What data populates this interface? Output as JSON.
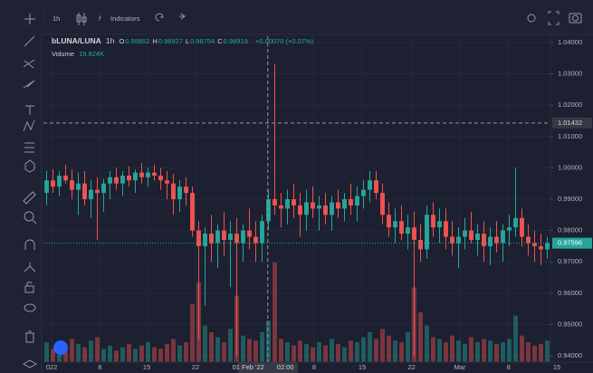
{
  "toolbar": {
    "interval": "1h",
    "indicators": "Indicators"
  },
  "chart_data": {
    "type": "candlestick",
    "symbol": "bLUNA/LUNA",
    "interval": "1h",
    "ohlc_legend": [
      {
        "key": "O",
        "value": "0.98852"
      },
      {
        "key": "H",
        "value": "0.98927"
      },
      {
        "key": "L",
        "value": "0.98754"
      },
      {
        "key": "C",
        "value": "0.98919"
      }
    ],
    "change": "+0.00070 (+0.07%)",
    "volume_legend": {
      "name": "Volume",
      "value": "19.824K"
    },
    "up_color": "#26a69a",
    "down_color": "#ef5350",
    "open": [
      0.992,
      0.996,
      0.994,
      0.9975,
      0.996,
      0.993,
      0.995,
      0.99,
      0.993,
      0.992,
      0.995,
      0.997,
      0.995,
      0.9975,
      0.996,
      0.9985,
      0.997,
      0.9985,
      0.9975,
      0.996,
      0.995,
      0.99,
      0.994,
      0.992,
      0.98,
      0.975,
      0.979,
      0.976,
      0.98,
      0.977,
      0.979,
      0.976,
      0.98,
      0.978,
      0.976,
      0.983,
      0.99,
      0.988,
      0.987,
      0.99,
      0.988,
      0.985,
      0.989,
      0.987,
      0.988,
      0.985,
      0.989,
      0.987,
      0.99,
      0.988,
      0.991,
      0.993,
      0.996,
      0.992,
      0.985,
      0.981,
      0.983,
      0.979,
      0.981,
      0.977,
      0.974,
      0.985,
      0.981,
      0.983,
      0.978,
      0.976,
      0.978,
      0.98,
      0.977,
      0.979,
      0.975,
      0.978,
      0.976,
      0.98,
      0.981,
      0.984,
      0.978,
      0.976,
      0.975,
      0.974
    ],
    "high": [
      0.999,
      0.9995,
      0.999,
      1.001,
      0.9995,
      0.9985,
      0.999,
      0.996,
      0.997,
      0.9965,
      0.999,
      1.0,
      0.999,
      1.0005,
      0.9995,
      1.0015,
      1.0,
      1.001,
      1.0,
      0.999,
      0.998,
      0.996,
      0.997,
      0.994,
      0.983,
      0.981,
      0.985,
      0.982,
      0.986,
      0.983,
      0.984,
      0.982,
      0.987,
      0.983,
      0.985,
      0.993,
      1.033,
      0.992,
      0.993,
      0.995,
      0.992,
      0.993,
      0.994,
      0.991,
      0.992,
      0.991,
      0.993,
      0.992,
      0.995,
      0.994,
      0.996,
      0.999,
      0.999,
      0.995,
      0.989,
      0.987,
      0.988,
      0.985,
      0.986,
      0.982,
      0.988,
      0.989,
      0.987,
      0.987,
      0.983,
      0.981,
      0.984,
      0.986,
      0.982,
      0.983,
      0.981,
      0.983,
      0.982,
      0.985,
      1.0,
      0.987,
      0.982,
      0.98,
      0.979,
      0.978
    ],
    "low": [
      0.988,
      0.992,
      0.991,
      0.995,
      0.99,
      0.985,
      0.988,
      0.984,
      0.977,
      0.986,
      0.99,
      0.993,
      0.991,
      0.994,
      0.992,
      0.995,
      0.994,
      0.996,
      0.993,
      0.99,
      0.985,
      0.986,
      0.988,
      0.978,
      0.945,
      0.956,
      0.97,
      0.968,
      0.972,
      0.962,
      0.94,
      0.97,
      0.974,
      0.97,
      0.97,
      0.98,
      0.985,
      0.981,
      0.982,
      0.984,
      0.978,
      0.98,
      0.984,
      0.98,
      0.982,
      0.98,
      0.984,
      0.983,
      0.985,
      0.983,
      0.987,
      0.989,
      0.99,
      0.982,
      0.978,
      0.976,
      0.977,
      0.974,
      0.94,
      0.97,
      0.971,
      0.978,
      0.976,
      0.974,
      0.972,
      0.968,
      0.974,
      0.976,
      0.972,
      0.97,
      0.969,
      0.973,
      0.97,
      0.975,
      0.978,
      0.975,
      0.972,
      0.97,
      0.969,
      0.971
    ],
    "close": [
      0.996,
      0.994,
      0.9975,
      0.996,
      0.993,
      0.995,
      0.99,
      0.993,
      0.992,
      0.995,
      0.997,
      0.995,
      0.9975,
      0.996,
      0.9985,
      0.997,
      0.9985,
      0.9975,
      0.996,
      0.995,
      0.99,
      0.994,
      0.992,
      0.98,
      0.975,
      0.979,
      0.976,
      0.98,
      0.977,
      0.979,
      0.976,
      0.98,
      0.978,
      0.976,
      0.983,
      0.99,
      0.988,
      0.987,
      0.99,
      0.988,
      0.985,
      0.989,
      0.987,
      0.988,
      0.985,
      0.989,
      0.987,
      0.99,
      0.988,
      0.991,
      0.993,
      0.996,
      0.992,
      0.985,
      0.981,
      0.983,
      0.979,
      0.981,
      0.977,
      0.974,
      0.985,
      0.981,
      0.983,
      0.978,
      0.976,
      0.978,
      0.98,
      0.977,
      0.979,
      0.975,
      0.978,
      0.976,
      0.98,
      0.981,
      0.984,
      0.978,
      0.976,
      0.975,
      0.974,
      0.976
    ],
    "volume": [
      12,
      8,
      10,
      9,
      14,
      11,
      9,
      13,
      15,
      8,
      10,
      7,
      9,
      11,
      8,
      10,
      12,
      9,
      8,
      11,
      14,
      10,
      12,
      35,
      48,
      22,
      18,
      15,
      12,
      20,
      40,
      16,
      14,
      13,
      18,
      25,
      60,
      14,
      12,
      10,
      13,
      11,
      9,
      12,
      10,
      14,
      11,
      9,
      13,
      12,
      15,
      18,
      14,
      20,
      16,
      13,
      12,
      18,
      45,
      30,
      22,
      15,
      14,
      12,
      16,
      13,
      11,
      15,
      12,
      14,
      13,
      11,
      12,
      14,
      28,
      16,
      12,
      10,
      11,
      13
    ],
    "xlim": [
      0,
      80
    ],
    "xticks": [
      {
        "value": 1.3,
        "label": "022"
      },
      {
        "value": 8.9,
        "label": "8"
      },
      {
        "value": 16.3,
        "label": "15"
      },
      {
        "value": 24,
        "label": "22"
      },
      {
        "value": 42.7,
        "label": "8"
      },
      {
        "value": 50.3,
        "label": "15"
      },
      {
        "value": 58.1,
        "label": "22"
      },
      {
        "value": 65.7,
        "label": "Mar"
      },
      {
        "value": 73.4,
        "label": "8"
      },
      {
        "value": 81,
        "label": "15"
      }
    ],
    "ylim": [
      0.938,
      1.042
    ],
    "yticks": [
      {
        "value": 0.94,
        "label": "0.94000"
      },
      {
        "value": 0.95,
        "label": "0.95000"
      },
      {
        "value": 0.96,
        "label": "0.96000"
      },
      {
        "value": 0.97,
        "label": "0.97000"
      },
      {
        "value": 0.98,
        "label": "0.98000"
      },
      {
        "value": 0.99,
        "label": "0.99000"
      },
      {
        "value": 1.0,
        "label": "1.00000"
      },
      {
        "value": 1.01,
        "label": "1.01000"
      },
      {
        "value": 1.02,
        "label": "1.02000"
      },
      {
        "value": 1.03,
        "label": "1.03000"
      },
      {
        "value": 1.04,
        "label": "1.04000"
      }
    ],
    "grid": true,
    "crosshair": {
      "x": {
        "value": 35.4,
        "label": "01 Feb '22"
      },
      "x_time": "02:00",
      "y": {
        "value": 1.01432,
        "label": "1.01432"
      }
    },
    "last_price": {
      "value": 0.97596,
      "label": "0.97596"
    }
  }
}
